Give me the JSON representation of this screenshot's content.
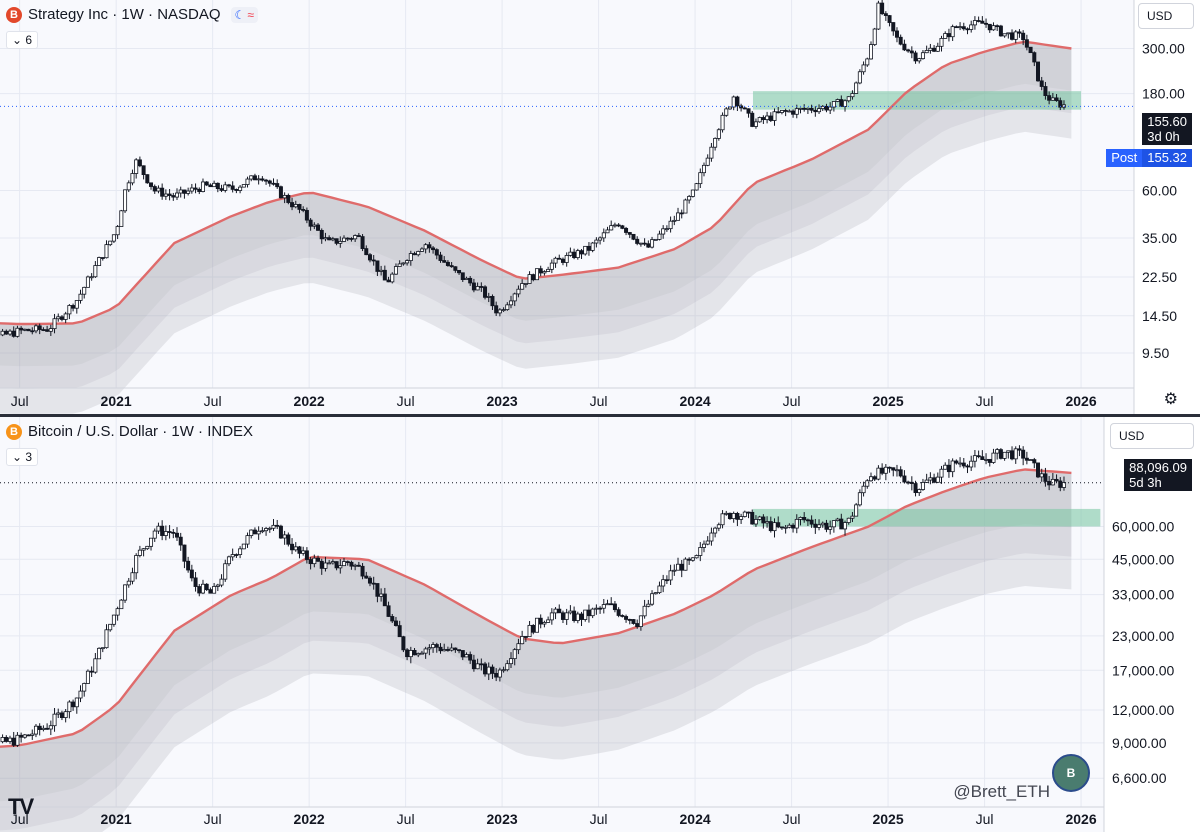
{
  "top": {
    "title": "Strategy Inc · 1W · NASDAQ",
    "logo_letter": "B",
    "mode_a": "☾",
    "mode_b": "≈",
    "collapse_label": "6",
    "currency": "USD",
    "last_price": "155.60",
    "countdown": "3d 0h",
    "post_label": "Post",
    "post_price": "155.32",
    "settings_icon": "gear-icon"
  },
  "bottom": {
    "title": "Bitcoin / U.S. Dollar · 1W · INDEX",
    "logo_letter": "B",
    "collapse_label": "3",
    "currency": "USD",
    "last_price": "88,096.09",
    "countdown": "5d 3h",
    "watermark": "@Brett_ETH",
    "tv_logo": "TV"
  },
  "colors": {
    "candle": "#131722",
    "ma": "#df6b6b",
    "band": "#9598a1",
    "zone": "#7fc8a7",
    "grid": "#f0f3fa",
    "price_line": "#2962ff"
  },
  "chart_data": [
    {
      "type": "line",
      "title": "Strategy Inc · 1W · NASDAQ",
      "scale": "log",
      "ylim": [
        7,
        520
      ],
      "xlim": [
        2020.45,
        2026.15
      ],
      "y_ticks": [
        "300.00",
        "180.00",
        "60.00",
        "35.00",
        "22.50",
        "14.50",
        "9.50"
      ],
      "x_ticks": [
        {
          "t": 2020.5,
          "label": "Jul",
          "bold": false
        },
        {
          "t": 2021.0,
          "label": "2021",
          "bold": true
        },
        {
          "t": 2021.5,
          "label": "Jul",
          "bold": false
        },
        {
          "t": 2022.0,
          "label": "2022",
          "bold": true
        },
        {
          "t": 2022.5,
          "label": "Jul",
          "bold": false
        },
        {
          "t": 2023.0,
          "label": "2023",
          "bold": true
        },
        {
          "t": 2023.5,
          "label": "Jul",
          "bold": false
        },
        {
          "t": 2024.0,
          "label": "2024",
          "bold": true
        },
        {
          "t": 2024.5,
          "label": "Jul",
          "bold": false
        },
        {
          "t": 2025.0,
          "label": "2025",
          "bold": true
        },
        {
          "t": 2025.5,
          "label": "Jul",
          "bold": false
        },
        {
          "t": 2026.0,
          "label": "2026",
          "bold": true
        }
      ],
      "price_series": {
        "name": "Price (weekly close)",
        "t": [
          2020.2,
          2020.35,
          2020.5,
          2020.65,
          2020.8,
          2020.9,
          2021.0,
          2021.05,
          2021.1,
          2021.2,
          2021.3,
          2021.45,
          2021.6,
          2021.75,
          2021.85,
          2021.95,
          2022.1,
          2022.25,
          2022.4,
          2022.5,
          2022.6,
          2022.75,
          2022.9,
          2022.98,
          2023.1,
          2023.25,
          2023.45,
          2023.6,
          2023.75,
          2023.9,
          2024.0,
          2024.1,
          2024.2,
          2024.3,
          2024.45,
          2024.6,
          2024.7,
          2024.8,
          2024.9,
          2024.95,
          2025.05,
          2025.15,
          2025.25,
          2025.35,
          2025.5,
          2025.6,
          2025.7,
          2025.75,
          2025.8,
          2025.85,
          2025.93
        ],
        "values": [
          13.5,
          11.2,
          12.2,
          12.5,
          17.5,
          26,
          38,
          62,
          84,
          60,
          56,
          63,
          61,
          72,
          58,
          48,
          33,
          36,
          21,
          28,
          33,
          24,
          19,
          15,
          21,
          26,
          31,
          42,
          31,
          44,
          60,
          112,
          175,
          128,
          145,
          152,
          155,
          170,
          285,
          480,
          330,
          270,
          310,
          385,
          400,
          355,
          340,
          260,
          185,
          165,
          155.6
        ]
      },
      "moving_average": {
        "name": "MA",
        "t": [
          2020.2,
          2020.5,
          2020.8,
          2021.0,
          2021.3,
          2021.6,
          2021.8,
          2022.0,
          2022.3,
          2022.6,
          2022.9,
          2023.1,
          2023.3,
          2023.6,
          2023.9,
          2024.1,
          2024.3,
          2024.6,
          2024.9,
          2025.1,
          2025.3,
          2025.5,
          2025.7,
          2025.95
        ],
        "values": [
          13.5,
          13.2,
          13.3,
          16,
          33,
          45,
          53,
          59,
          50,
          38,
          27,
          22,
          23,
          25,
          31,
          40,
          65,
          85,
          120,
          185,
          250,
          290,
          325,
          300
        ]
      },
      "support_zone": {
        "label": "",
        "low": 150,
        "high": 185,
        "t_start": 2024.3,
        "t_end": 2026.0
      }
    },
    {
      "type": "line",
      "title": "Bitcoin / U.S. Dollar · 1W · INDEX",
      "scale": "log",
      "ylim": [
        5500,
        150000
      ],
      "xlim": [
        2020.45,
        2026.15
      ],
      "y_ticks": [
        "60,000.00",
        "45,000.00",
        "33,000.00",
        "23,000.00",
        "17,000.00",
        "12,000.00",
        "9,000.00",
        "6,600.00"
      ],
      "x_ticks": [
        {
          "t": 2020.5,
          "label": "Jul",
          "bold": false
        },
        {
          "t": 2021.0,
          "label": "2021",
          "bold": true
        },
        {
          "t": 2021.5,
          "label": "Jul",
          "bold": false
        },
        {
          "t": 2022.0,
          "label": "2022",
          "bold": true
        },
        {
          "t": 2022.5,
          "label": "Jul",
          "bold": false
        },
        {
          "t": 2023.0,
          "label": "2023",
          "bold": true
        },
        {
          "t": 2023.5,
          "label": "Jul",
          "bold": false
        },
        {
          "t": 2024.0,
          "label": "2024",
          "bold": true
        },
        {
          "t": 2024.5,
          "label": "Jul",
          "bold": false
        },
        {
          "t": 2025.0,
          "label": "2025",
          "bold": true
        },
        {
          "t": 2025.5,
          "label": "Jul",
          "bold": false
        },
        {
          "t": 2026.0,
          "label": "2026",
          "bold": true
        }
      ],
      "price_series": {
        "name": "Price (weekly close)",
        "t": [
          2020.2,
          2020.35,
          2020.5,
          2020.65,
          2020.8,
          2020.9,
          2021.0,
          2021.1,
          2021.2,
          2021.3,
          2021.4,
          2021.5,
          2021.6,
          2021.75,
          2021.85,
          2021.95,
          2022.1,
          2022.2,
          2022.3,
          2022.4,
          2022.5,
          2022.65,
          2022.8,
          2022.9,
          2022.98,
          2023.1,
          2023.25,
          2023.4,
          2023.55,
          2023.7,
          2023.8,
          2023.9,
          2024.0,
          2024.1,
          2024.2,
          2024.35,
          2024.45,
          2024.55,
          2024.7,
          2024.8,
          2024.9,
          2025.05,
          2025.15,
          2025.25,
          2025.35,
          2025.5,
          2025.6,
          2025.7,
          2025.75,
          2025.8,
          2025.85,
          2025.93
        ],
        "values": [
          7000,
          8800,
          9300,
          10500,
          13500,
          19000,
          29000,
          45000,
          58000,
          57000,
          36000,
          33000,
          47000,
          61000,
          57000,
          47000,
          42000,
          44000,
          40000,
          29000,
          20000,
          21000,
          19500,
          17000,
          16500,
          23000,
          28000,
          27000,
          30000,
          26000,
          34000,
          42000,
          44000,
          62000,
          68000,
          62000,
          58000,
          64000,
          60000,
          63000,
          95000,
          97000,
          84000,
          94000,
          105000,
          108000,
          115000,
          112000,
          102000,
          92000,
          87000,
          88096
        ]
      },
      "moving_average": {
        "name": "MA",
        "t": [
          2020.2,
          2020.5,
          2020.8,
          2021.0,
          2021.3,
          2021.6,
          2021.8,
          2022.0,
          2022.3,
          2022.6,
          2022.9,
          2023.1,
          2023.3,
          2023.6,
          2023.9,
          2024.1,
          2024.3,
          2024.6,
          2024.9,
          2025.1,
          2025.3,
          2025.5,
          2025.7,
          2025.95
        ],
        "values": [
          8500,
          8800,
          9800,
          12500,
          24000,
          33000,
          38000,
          46000,
          45000,
          36000,
          27000,
          22500,
          21500,
          23500,
          28000,
          33000,
          41000,
          50000,
          60000,
          72000,
          82000,
          92000,
          99000,
          96000
        ]
      },
      "support_zone": {
        "label": "",
        "low": 60000,
        "high": 70000,
        "t_start": 2024.3,
        "t_end": 2026.1
      }
    }
  ]
}
